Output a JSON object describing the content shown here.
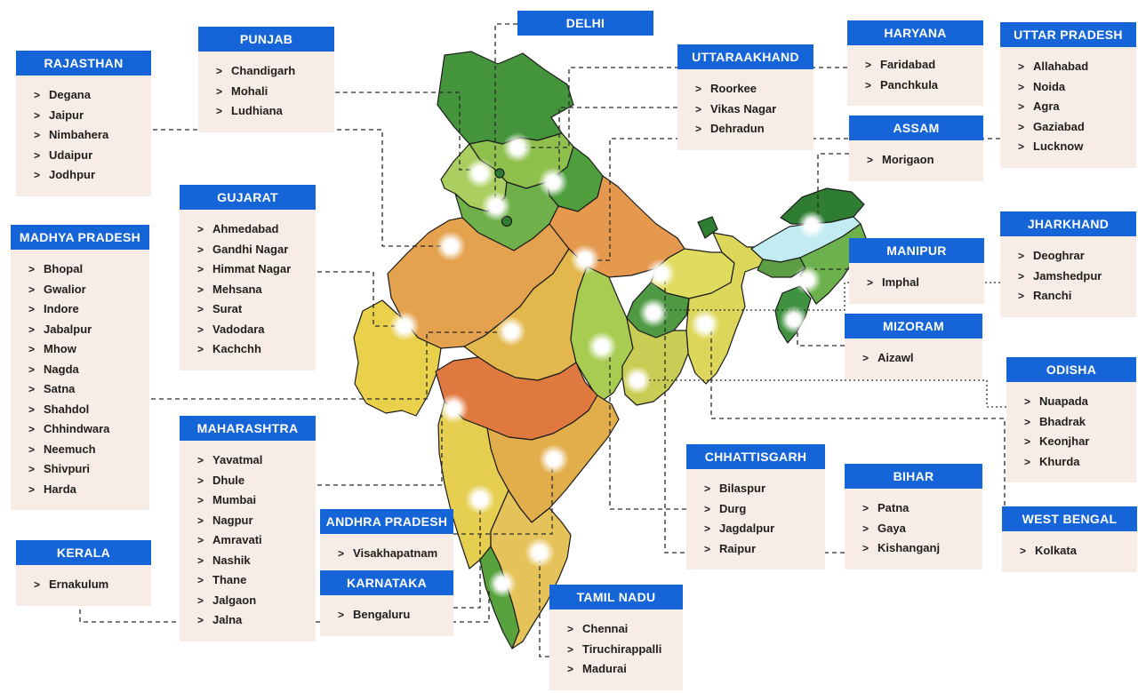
{
  "colors": {
    "header_bg": "#1565d8",
    "header_text": "#ffffff",
    "box_bg": "#f8ece7",
    "item_text": "#1f1f1f",
    "connector": "#2a2a2a",
    "map_outline": "#1b1b1b",
    "marker_glow": "#ffffff"
  },
  "icons": {
    "list_bullet": ">"
  },
  "state_boxes": [
    {
      "id": "rajasthan",
      "label": "RAJASTHAN",
      "cities": [
        "Degana",
        "Jaipur",
        "Nimbahera",
        "Udaipur",
        "Jodhpur"
      ]
    },
    {
      "id": "madhya-pradesh",
      "label": "MADHYA PRADESH",
      "cities": [
        "Bhopal",
        "Gwalior",
        "Indore",
        "Jabalpur",
        "Mhow",
        "Nagda",
        "Satna",
        "Shahdol",
        "Chhindwara",
        "Neemuch",
        "Shivpuri",
        "Harda"
      ]
    },
    {
      "id": "kerala",
      "label": "KERALA",
      "cities": [
        "Ernakulum"
      ]
    },
    {
      "id": "punjab",
      "label": "PUNJAB",
      "cities": [
        "Chandigarh",
        "Mohali",
        "Ludhiana"
      ]
    },
    {
      "id": "gujarat",
      "label": "GUJARAT",
      "cities": [
        "Ahmedabad",
        "Gandhi Nagar",
        "Himmat Nagar",
        "Mehsana",
        "Surat",
        "Vadodara",
        "Kachchh"
      ]
    },
    {
      "id": "maharashtra",
      "label": "MAHARASHTRA",
      "cities": [
        "Yavatmal",
        "Dhule",
        "Mumbai",
        "Nagpur",
        "Amravati",
        "Nashik",
        "Thane",
        "Jalgaon",
        "Jalna"
      ]
    },
    {
      "id": "andhra-pradesh",
      "label": "ANDHRA PRADESH",
      "cities": [
        "Visakhapatnam"
      ]
    },
    {
      "id": "karnataka",
      "label": "KARNATAKA",
      "cities": [
        "Bengaluru"
      ]
    },
    {
      "id": "delhi",
      "label": "DELHI",
      "cities": []
    },
    {
      "id": "uttaraakhand",
      "label": "UTTARAAKHAND",
      "cities": [
        "Roorkee",
        "Vikas Nagar",
        "Dehradun"
      ]
    },
    {
      "id": "tamil-nadu",
      "label": "TAMIL NADU",
      "cities": [
        "Chennai",
        "Tiruchirappalli",
        "Madurai"
      ]
    },
    {
      "id": "chhattisgarh",
      "label": "CHHATTISGARH",
      "cities": [
        "Bilaspur",
        "Durg",
        "Jagdalpur",
        "Raipur"
      ]
    },
    {
      "id": "haryana",
      "label": "HARYANA",
      "cities": [
        "Faridabad",
        "Panchkula"
      ]
    },
    {
      "id": "assam",
      "label": "ASSAM",
      "cities": [
        "Morigaon"
      ]
    },
    {
      "id": "manipur",
      "label": "MANIPUR",
      "cities": [
        "Imphal"
      ]
    },
    {
      "id": "mizoram",
      "label": "MIZORAM",
      "cities": [
        "Aizawl"
      ]
    },
    {
      "id": "bihar",
      "label": "BIHAR",
      "cities": [
        "Patna",
        "Gaya",
        "Kishanganj"
      ]
    },
    {
      "id": "uttar-pradesh",
      "label": "UTTAR PRADESH",
      "cities": [
        "Allahabad",
        "Noida",
        "Agra",
        "Gaziabad",
        "Lucknow"
      ]
    },
    {
      "id": "jharkhand",
      "label": "JHARKHAND",
      "cities": [
        "Deoghrar",
        "Jamshedpur",
        "Ranchi"
      ]
    },
    {
      "id": "odisha",
      "label": "ODISHA",
      "cities": [
        "Nuapada",
        "Bhadrak",
        "Keonjhar",
        "Khurda"
      ]
    },
    {
      "id": "west-bengal",
      "label": "WEST BENGAL",
      "cities": [
        "Kolkata"
      ]
    }
  ],
  "map": {
    "regions": [
      {
        "id": "jammu-kashmir",
        "color": "#44943c"
      },
      {
        "id": "himachal-pradesh",
        "color": "#8fbf4d"
      },
      {
        "id": "punjab-state",
        "color": "#aace60"
      },
      {
        "id": "uttarakhand-state",
        "color": "#4e9e3e"
      },
      {
        "id": "haryana-state",
        "color": "#6fb04a"
      },
      {
        "id": "chandigarh-dot",
        "color": "#2e7d32"
      },
      {
        "id": "delhi-dot",
        "color": "#2e7d32"
      },
      {
        "id": "rajasthan-state",
        "color": "#e5a24e"
      },
      {
        "id": "uttar-pradesh-state",
        "color": "#e4994f"
      },
      {
        "id": "gujarat-state",
        "color": "#e9d14b"
      },
      {
        "id": "madhya-pradesh-state",
        "color": "#e2b74b"
      },
      {
        "id": "bihar-state",
        "color": "#dfdc5f"
      },
      {
        "id": "jharkhand-state",
        "color": "#4f9943"
      },
      {
        "id": "west-bengal-state",
        "color": "#dcd75a"
      },
      {
        "id": "sikkim-state",
        "color": "#2e7d32"
      },
      {
        "id": "arunachal-state",
        "color": "#2e7d32"
      },
      {
        "id": "assam-valley",
        "color": "#c2ebf2"
      },
      {
        "id": "meghalaya-state",
        "color": "#5d9e44"
      },
      {
        "id": "nagaland-manipur",
        "color": "#6db14c"
      },
      {
        "id": "tripura-mizoram",
        "color": "#3f9240"
      },
      {
        "id": "chhattisgarh-state",
        "color": "#a8cc52"
      },
      {
        "id": "odisha-state",
        "color": "#c9cd55"
      },
      {
        "id": "maharashtra-state",
        "color": "#e0793f"
      },
      {
        "id": "andhra-state",
        "color": "#e2ae4c"
      },
      {
        "id": "karnataka-state",
        "color": "#e5ce50"
      },
      {
        "id": "kerala-state",
        "color": "#57a23c"
      },
      {
        "id": "tamil-nadu-state",
        "color": "#e6c35a"
      }
    ]
  }
}
